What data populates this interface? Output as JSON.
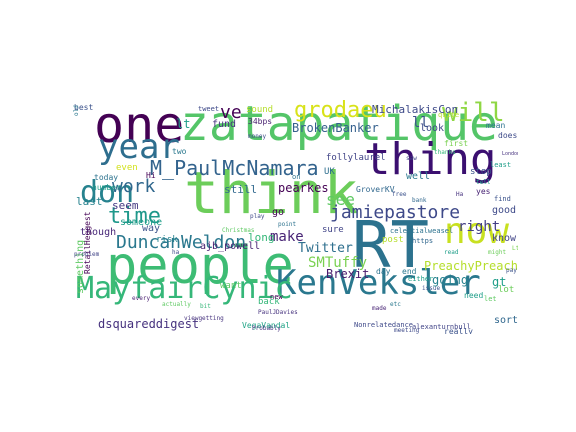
{
  "words": [
    {
      "text": "people",
      "color": "#3dbc74"
    },
    {
      "text": "think",
      "color": "#6ccd5a"
    },
    {
      "text": "zatapatique",
      "color": "#54c568"
    },
    {
      "text": "one",
      "color": "#440154"
    },
    {
      "text": "RT",
      "color": "#2c728e"
    },
    {
      "text": "thing",
      "color": "#3b0f70"
    },
    {
      "text": "KenVeksler",
      "color": "#2a788e"
    },
    {
      "text": "year",
      "color": "#2e6e8e"
    },
    {
      "text": "now",
      "color": "#c8e020"
    },
    {
      "text": "MayfairCynic",
      "color": "#35b779"
    },
    {
      "text": "will",
      "color": "#8fd744"
    },
    {
      "text": "grodaeu",
      "color": "#d8e219"
    },
    {
      "text": "M_PaulMcNamara",
      "color": "#33638d"
    },
    {
      "text": "don",
      "color": "#26828e"
    },
    {
      "text": "time",
      "color": "#1f988b"
    },
    {
      "text": "work",
      "color": "#31688e"
    },
    {
      "text": "DuncanWeldon",
      "color": "#2a788e"
    },
    {
      "text": "jamiepastore",
      "color": "#3e4989"
    },
    {
      "text": "see",
      "color": "#5ec962"
    },
    {
      "text": "ve",
      "color": "#440154"
    },
    {
      "text": "Brexit",
      "color": "#481a6c"
    },
    {
      "text": "make",
      "color": "#482475"
    },
    {
      "text": "PreachyPreach",
      "color": "#b5de2b"
    },
    {
      "text": "SMTuffy",
      "color": "#7ad151"
    },
    {
      "text": "BrokenBanker",
      "color": "#35608d"
    },
    {
      "text": "MichalakisCon",
      "color": "#3e4a89"
    },
    {
      "text": "right",
      "color": "#433e85"
    },
    {
      "text": "going",
      "color": "#26828e"
    },
    {
      "text": "Twitter",
      "color": "#2e6f8e"
    },
    {
      "text": "gt",
      "color": "#1f9e89"
    },
    {
      "text": "dsquareddigest",
      "color": "#46327e"
    },
    {
      "text": "VegaVandal",
      "color": "#20a486"
    },
    {
      "text": "ll",
      "color": "#3b528b"
    },
    {
      "text": "pearkes",
      "color": "#440154"
    },
    {
      "text": "still",
      "color": "#31688e"
    },
    {
      "text": "good",
      "color": "#3e4a89"
    },
    {
      "text": "know",
      "color": "#414487"
    },
    {
      "text": "fund",
      "color": "#46327e"
    },
    {
      "text": "well",
      "color": "#2a788e"
    },
    {
      "text": "way",
      "color": "#3b528b"
    },
    {
      "text": "someone",
      "color": "#1f9e89"
    },
    {
      "text": "risk",
      "color": "#25838e"
    },
    {
      "text": "ajb_powell",
      "color": "#481f70"
    },
    {
      "text": "seem",
      "color": "#443983"
    },
    {
      "text": "even",
      "color": "#d2e21b"
    },
    {
      "text": "last",
      "color": "#26828e"
    },
    {
      "text": "though",
      "color": "#482878"
    },
    {
      "text": "something",
      "color": "#5ec962"
    },
    {
      "text": "long",
      "color": "#35b779"
    },
    {
      "text": "post",
      "color": "#b5de2b"
    },
    {
      "text": "really",
      "color": "#3b528b"
    },
    {
      "text": "sort",
      "color": "#31688e"
    },
    {
      "text": "look",
      "color": "#3e4989"
    },
    {
      "text": "lt",
      "color": "#1f9e89"
    },
    {
      "text": "two",
      "color": "#2a788e"
    },
    {
      "text": "sound",
      "color": "#b5de2b"
    },
    {
      "text": "best",
      "color": "#3b528b"
    },
    {
      "text": "34bps",
      "color": "#481f70"
    },
    {
      "text": "tweet",
      "color": "#3e4989"
    },
    {
      "text": "today",
      "color": "#2c728e"
    },
    {
      "text": "number",
      "color": "#1f9e89"
    },
    {
      "text": "want",
      "color": "#5ec962"
    },
    {
      "text": "back",
      "color": "#35b779"
    },
    {
      "text": "go",
      "color": "#440154"
    },
    {
      "text": "sure",
      "color": "#414487"
    },
    {
      "text": "UK",
      "color": "#2e6e8e"
    },
    {
      "text": "first",
      "color": "#7ad151"
    },
    {
      "text": "stop",
      "color": "#3b528b"
    },
    {
      "text": "mean",
      "color": "#2c728e"
    },
    {
      "text": "doesn",
      "color": "#3e4a89"
    },
    {
      "text": "least",
      "color": "#1f9e89"
    },
    {
      "text": "lot",
      "color": "#6ccd5a"
    },
    {
      "text": "find",
      "color": "#3b528b"
    },
    {
      "text": "need",
      "color": "#1f9e89"
    },
    {
      "text": "end",
      "color": "#2a788e"
    },
    {
      "text": "yes",
      "color": "#482475"
    },
    {
      "text": "quite",
      "color": "#b5de2b"
    },
    {
      "text": "day",
      "color": "#2c728e"
    },
    {
      "text": "Probably",
      "color": "#46327e"
    },
    {
      "text": "Nonrelatedance",
      "color": "#3e4989"
    },
    {
      "text": "alexanturnbull",
      "color": "#414487"
    },
    {
      "text": "celestialweasel",
      "color": "#2c728e"
    },
    {
      "text": "follylaurel",
      "color": "#414487"
    },
    {
      "text": "GroverKV",
      "color": "#31688e"
    },
    {
      "text": "PaulJDavies",
      "color": "#46327e"
    },
    {
      "text": "Christmas",
      "color": "#5ec962"
    },
    {
      "text": "viewgetting",
      "color": "#46327e"
    },
    {
      "text": "RetailHeggest",
      "color": "#440154"
    },
    {
      "text": "meeting",
      "color": "#3e4a89"
    },
    {
      "text": "either",
      "color": "#1f9e89"
    },
    {
      "text": "issue",
      "color": "#3b528b"
    },
    {
      "text": "https",
      "color": "#31688e"
    },
    {
      "text": "etc",
      "color": "#2a788e"
    },
    {
      "text": "might",
      "color": "#6ccd5a"
    },
    {
      "text": "play",
      "color": "#3e4989"
    },
    {
      "text": "London",
      "color": "#46327e"
    },
    {
      "text": "thanks",
      "color": "#35b779"
    },
    {
      "text": "point",
      "color": "#2c728e"
    },
    {
      "text": "every",
      "color": "#481f70"
    },
    {
      "text": "let",
      "color": "#5ec962"
    },
    {
      "text": "free",
      "color": "#3b528b"
    },
    {
      "text": "read",
      "color": "#1f9e89"
    },
    {
      "text": "new",
      "color": "#440154"
    },
    {
      "text": "problem",
      "color": "#414487"
    },
    {
      "text": "old",
      "color": "#2a788e"
    },
    {
      "text": "money",
      "color": "#3e4a89"
    },
    {
      "text": "bank",
      "color": "#31688e"
    },
    {
      "text": "made",
      "color": "#482475"
    },
    {
      "text": "actually",
      "color": "#5ec962"
    },
    {
      "text": "pay",
      "color": "#3b528b"
    },
    {
      "text": "tell",
      "color": "#1f9e89"
    },
    {
      "text": "Hi",
      "color": "#440154"
    },
    {
      "text": "on",
      "color": "#2c728e"
    },
    {
      "text": "Lt",
      "color": "#7ad151"
    },
    {
      "text": "Ha",
      "color": "#46327e"
    },
    {
      "text": "saw",
      "color": "#414487"
    },
    {
      "text": "bit",
      "color": "#35b779"
    },
    {
      "text": "ha",
      "color": "#3e4989"
    }
  ]
}
